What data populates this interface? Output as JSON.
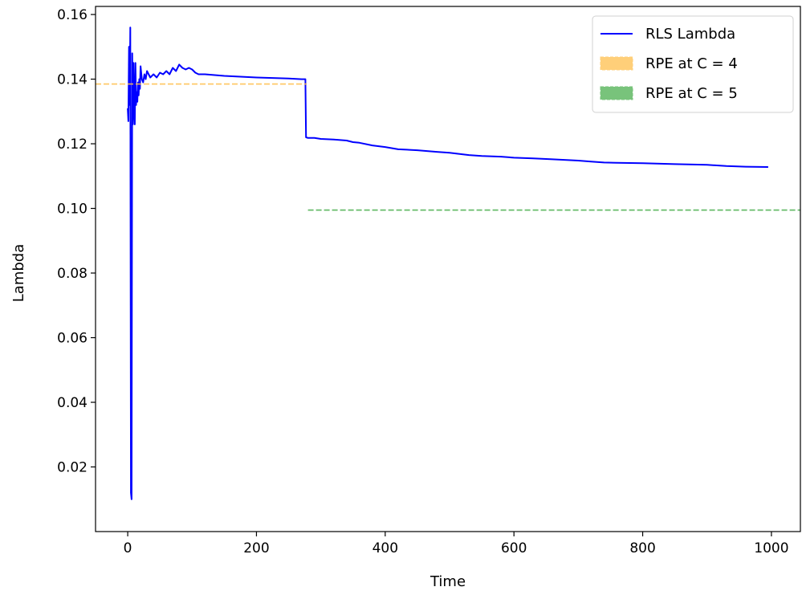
{
  "chart_data": {
    "type": "line",
    "title": "",
    "xlabel": "Time",
    "ylabel": "Lambda",
    "xlim": [
      -50,
      1045
    ],
    "ylim": [
      0.0,
      0.1625
    ],
    "x_ticks": [
      0,
      200,
      400,
      600,
      800,
      1000
    ],
    "x_tick_labels": [
      "0",
      "200",
      "400",
      "600",
      "800",
      "1000"
    ],
    "y_ticks": [
      0.02,
      0.04,
      0.06,
      0.08,
      0.1,
      0.12,
      0.14,
      0.16
    ],
    "y_tick_labels": [
      "0.02",
      "0.04",
      "0.06",
      "0.08",
      "0.10",
      "0.12",
      "0.14",
      "0.16"
    ],
    "grid": false,
    "legend_position": "top-right",
    "series": [
      {
        "name": "RLS Lambda",
        "style": "solid",
        "color": "#0000ff",
        "x": [
          0,
          1,
          2,
          3,
          4,
          5,
          6,
          7,
          8,
          9,
          10,
          11,
          12,
          13,
          14,
          15,
          16,
          17,
          18,
          19,
          20,
          22,
          24,
          26,
          28,
          30,
          35,
          40,
          45,
          50,
          55,
          60,
          65,
          70,
          75,
          80,
          85,
          90,
          95,
          100,
          105,
          110,
          120,
          150,
          200,
          250,
          270,
          276,
          277,
          280,
          290,
          300,
          320,
          340,
          350,
          360,
          380,
          400,
          420,
          450,
          480,
          500,
          530,
          550,
          580,
          600,
          630,
          660,
          700,
          720,
          740,
          760,
          800,
          850,
          900,
          930,
          960,
          995
        ],
        "y": [
          0.131,
          0.127,
          0.15,
          0.132,
          0.156,
          0.012,
          0.01,
          0.148,
          0.126,
          0.145,
          0.13,
          0.126,
          0.145,
          0.132,
          0.136,
          0.133,
          0.139,
          0.135,
          0.14,
          0.137,
          0.144,
          0.14,
          0.139,
          0.1415,
          0.14,
          0.1425,
          0.1405,
          0.1415,
          0.1405,
          0.142,
          0.1415,
          0.1425,
          0.1415,
          0.1435,
          0.1425,
          0.1445,
          0.1435,
          0.143,
          0.1435,
          0.143,
          0.142,
          0.1415,
          0.1415,
          0.141,
          0.1405,
          0.1402,
          0.14,
          0.14,
          0.122,
          0.1218,
          0.1218,
          0.1215,
          0.1213,
          0.121,
          0.1205,
          0.1203,
          0.1195,
          0.119,
          0.1183,
          0.118,
          0.1175,
          0.1172,
          0.1165,
          0.1162,
          0.116,
          0.1157,
          0.1155,
          0.1152,
          0.1148,
          0.1145,
          0.1142,
          0.1141,
          0.114,
          0.1137,
          0.1135,
          0.1131,
          0.1129,
          0.1128
        ]
      },
      {
        "name": "RPE at C = 4",
        "style": "dashed",
        "color": "#ffc04d",
        "x": [
          -50,
          278
        ],
        "y": [
          0.1385,
          0.1385
        ]
      },
      {
        "name": "RPE at C = 5",
        "style": "dashed",
        "color": "#4caf50",
        "x": [
          280,
          1045
        ],
        "y": [
          0.0995,
          0.0995
        ]
      }
    ],
    "legend": [
      {
        "label": "RLS Lambda",
        "marker": "line",
        "color": "#0000ff"
      },
      {
        "label": "RPE at C = 4",
        "marker": "patch",
        "color": "#ffc04d"
      },
      {
        "label": "RPE at C = 5",
        "marker": "patch",
        "color": "#4caf50"
      }
    ]
  }
}
